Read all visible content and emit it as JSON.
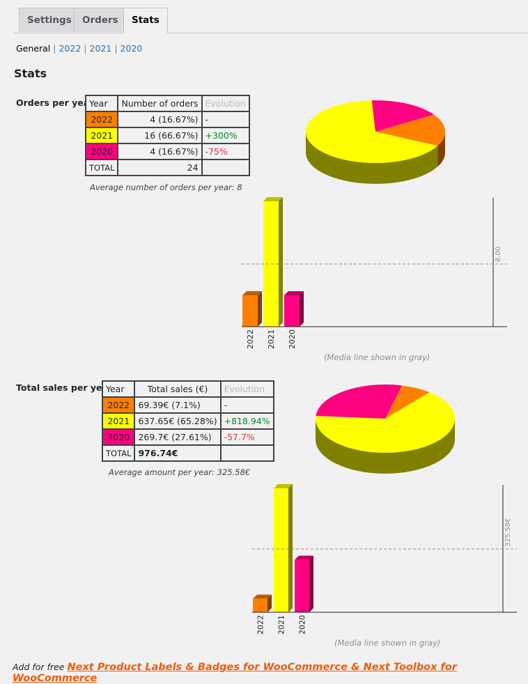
{
  "tabs": [
    {
      "label": "Settings",
      "active": false
    },
    {
      "label": "Orders",
      "active": false
    },
    {
      "label": "Stats",
      "active": true
    }
  ],
  "subnav": {
    "current": "General",
    "links": [
      "2022",
      "2021",
      "2020"
    ]
  },
  "title": "Stats",
  "colors": {
    "2022": "#ff7f00",
    "2021": "#ffff00",
    "2020": "#ff0080"
  },
  "orders": {
    "label": "Orders per year",
    "headers": [
      "Year",
      "Number of orders",
      "Evolution"
    ],
    "rows": [
      {
        "year": "2022",
        "value": "4 (16.67%)",
        "evo": "-",
        "evo_type": "none"
      },
      {
        "year": "2021",
        "value": "16 (66.67%)",
        "evo": "+300%",
        "evo_type": "pos"
      },
      {
        "year": "2020",
        "value": "4 (16.67%)",
        "evo": "-75%",
        "evo_type": "neg"
      }
    ],
    "total_label": "TOTAL",
    "total_value": "24",
    "average": "Average number of orders per year: 8",
    "media_label": "8.00",
    "caption": "(Media line shown in gray)"
  },
  "sales": {
    "label": "Total sales per year",
    "headers": [
      "Year",
      "Total sales (€)",
      "Evolution"
    ],
    "rows": [
      {
        "year": "2022",
        "value": "69.39€ (7.1%)",
        "evo": "-",
        "evo_type": "none"
      },
      {
        "year": "2021",
        "value": "637.65€ (65.28%)",
        "evo": "+818.94%",
        "evo_type": "pos"
      },
      {
        "year": "2020",
        "value": "269.7€ (27.61%)",
        "evo": "-57.7%",
        "evo_type": "neg"
      }
    ],
    "total_label": "TOTAL",
    "total_value": "976.74€",
    "average": "Average amount per year: 325.58€",
    "media_label": "325.58€",
    "caption": "(Media line shown in gray)"
  },
  "chart_data": [
    {
      "type": "pie",
      "categories": [
        "2022",
        "2021",
        "2020"
      ],
      "values": [
        4,
        16,
        4
      ],
      "colors": [
        "#ff7f00",
        "#ffff00",
        "#ff0080"
      ]
    },
    {
      "type": "bar",
      "categories": [
        "2022",
        "2021",
        "2020"
      ],
      "values": [
        4,
        16,
        4
      ],
      "mean": 8,
      "mean_label": "8.00",
      "colors": [
        "#ff7f00",
        "#ffff00",
        "#ff0080"
      ]
    },
    {
      "type": "pie",
      "categories": [
        "2022",
        "2021",
        "2020"
      ],
      "values": [
        69.39,
        637.65,
        269.7
      ],
      "colors": [
        "#ff7f00",
        "#ffff00",
        "#ff0080"
      ]
    },
    {
      "type": "bar",
      "categories": [
        "2022",
        "2021",
        "2020"
      ],
      "values": [
        69.39,
        637.65,
        269.7
      ],
      "mean": 325.58,
      "mean_label": "325.58€",
      "colors": [
        "#ff7f00",
        "#ffff00",
        "#ff0080"
      ]
    }
  ],
  "footer": {
    "prefix": "Add for free",
    "link": "Next Product Labels & Badges for WooCommerce & Next Toolbox for WooCommerce"
  }
}
